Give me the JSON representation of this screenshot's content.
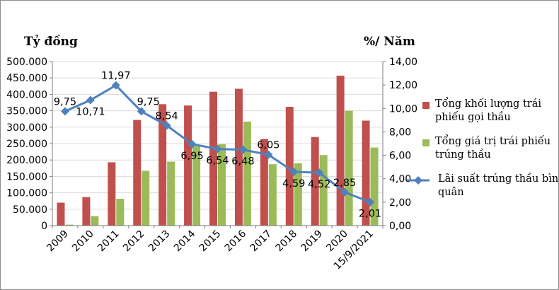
{
  "units": {
    "left": "Tỷ đồng",
    "right": "%/ Năm"
  },
  "colors": {
    "bar1": "#C0504D",
    "bar2": "#9BBB59",
    "line": "#4F81BD",
    "grid": "#D9D9D9",
    "axis": "#7F7F7F"
  },
  "chart_data": {
    "type": "bar",
    "categories": [
      "2009",
      "2010",
      "2011",
      "2012",
      "2013",
      "2014",
      "2015",
      "2016",
      "2017",
      "2018",
      "2019",
      "2020",
      "15/9/2021"
    ],
    "series": [
      {
        "name": "Tổng khối lượng trái phiếu gọi thầu",
        "kind": "bar",
        "axis": "left",
        "values": [
          70000,
          87000,
          193000,
          322000,
          370000,
          366000,
          408000,
          417000,
          264000,
          362000,
          270000,
          457000,
          320000
        ]
      },
      {
        "name": "Tổng giá trị trái phiếu trúng thầu",
        "kind": "bar",
        "axis": "left",
        "values": [
          3000,
          29000,
          82000,
          167000,
          195000,
          242000,
          248000,
          317000,
          187000,
          190000,
          215000,
          350000,
          238000
        ]
      },
      {
        "name": "Lãi suất trúng thầu bình quân",
        "kind": "line",
        "axis": "right",
        "values": [
          9.75,
          10.71,
          11.97,
          9.75,
          8.54,
          6.95,
          6.54,
          6.48,
          6.05,
          4.59,
          4.52,
          2.85,
          2.01
        ],
        "labels": [
          "9,75",
          "10,71",
          "11,97",
          "9,75",
          "8,54",
          "6,95",
          "6,54",
          "6,48",
          "6,05",
          "4,59",
          "4,52",
          "2,85",
          "2,01"
        ]
      }
    ],
    "y_left": {
      "ylim": [
        0,
        500000
      ],
      "ticks": [
        "0",
        "50.000",
        "100.000",
        "150.000",
        "200.000",
        "250.000",
        "300.000",
        "350.000",
        "400.000",
        "450.000",
        "500.000"
      ]
    },
    "y_right": {
      "ylim": [
        0,
        14
      ],
      "ticks": [
        "0,00",
        "2,00",
        "4,00",
        "6,00",
        "8,00",
        "10,00",
        "12,00",
        "14,00"
      ]
    },
    "grid": true,
    "legend_position": "right"
  }
}
